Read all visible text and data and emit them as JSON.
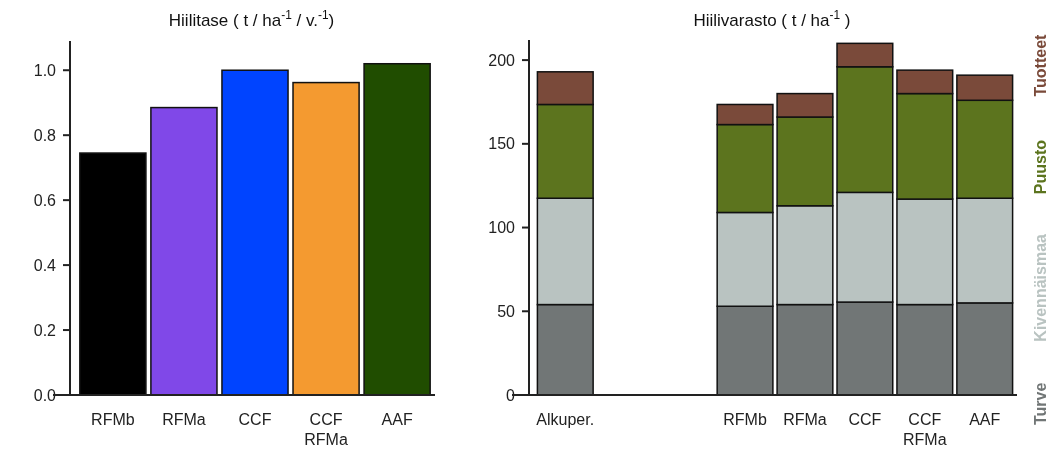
{
  "chart_data": [
    {
      "type": "bar",
      "title": "Hiilitase ( t / ha$^{-1}$ / v.$^{-1}$)",
      "categories": [
        "RFMb",
        "RFMa",
        "CCF",
        "CCF\nRFMa",
        "AAF"
      ],
      "values": [
        0.745,
        0.885,
        1.0,
        0.962,
        1.02
      ],
      "colors": [
        "#000000",
        "#8048e8",
        "#0044ff",
        "#f49a30",
        "#204d00"
      ],
      "ylim": [
        0,
        1.09
      ],
      "yticks": [
        {
          "value": 0,
          "label": "0.0"
        },
        0.2,
        0.4,
        0.6,
        0.8,
        {
          "value": 1,
          "label": "1.0"
        }
      ],
      "grid": false,
      "legend": false
    },
    {
      "type": "bar",
      "title": "Hiilivarasto ( t / ha$^{-1}$ )",
      "categories": [
        "Alkuper.",
        null,
        null,
        "RFMb",
        "RFMa",
        "CCF",
        "CCF\nRFMa",
        "AAF"
      ],
      "stacked": true,
      "series": [
        {
          "name": "Turve",
          "color": "#717676",
          "values": [
            54,
            null,
            null,
            53,
            54,
            55.5,
            54,
            55
          ]
        },
        {
          "name": "Kivennäismaa",
          "color": "#b9c3c1",
          "values": [
            63.5,
            null,
            null,
            56,
            59,
            65.5,
            63,
            62.5
          ]
        },
        {
          "name": "Puusto",
          "color": "#5c741e",
          "values": [
            56,
            null,
            null,
            52.5,
            53,
            75,
            63,
            58.5
          ]
        },
        {
          "name": "Tuotteet",
          "color": "#7a4a3a",
          "values": [
            19.5,
            null,
            null,
            12,
            14,
            14,
            14,
            15
          ]
        }
      ],
      "ylim": [
        0,
        212
      ],
      "yticks": [
        0,
        50,
        100,
        150,
        200
      ],
      "grid": false,
      "legend": "right"
    }
  ]
}
